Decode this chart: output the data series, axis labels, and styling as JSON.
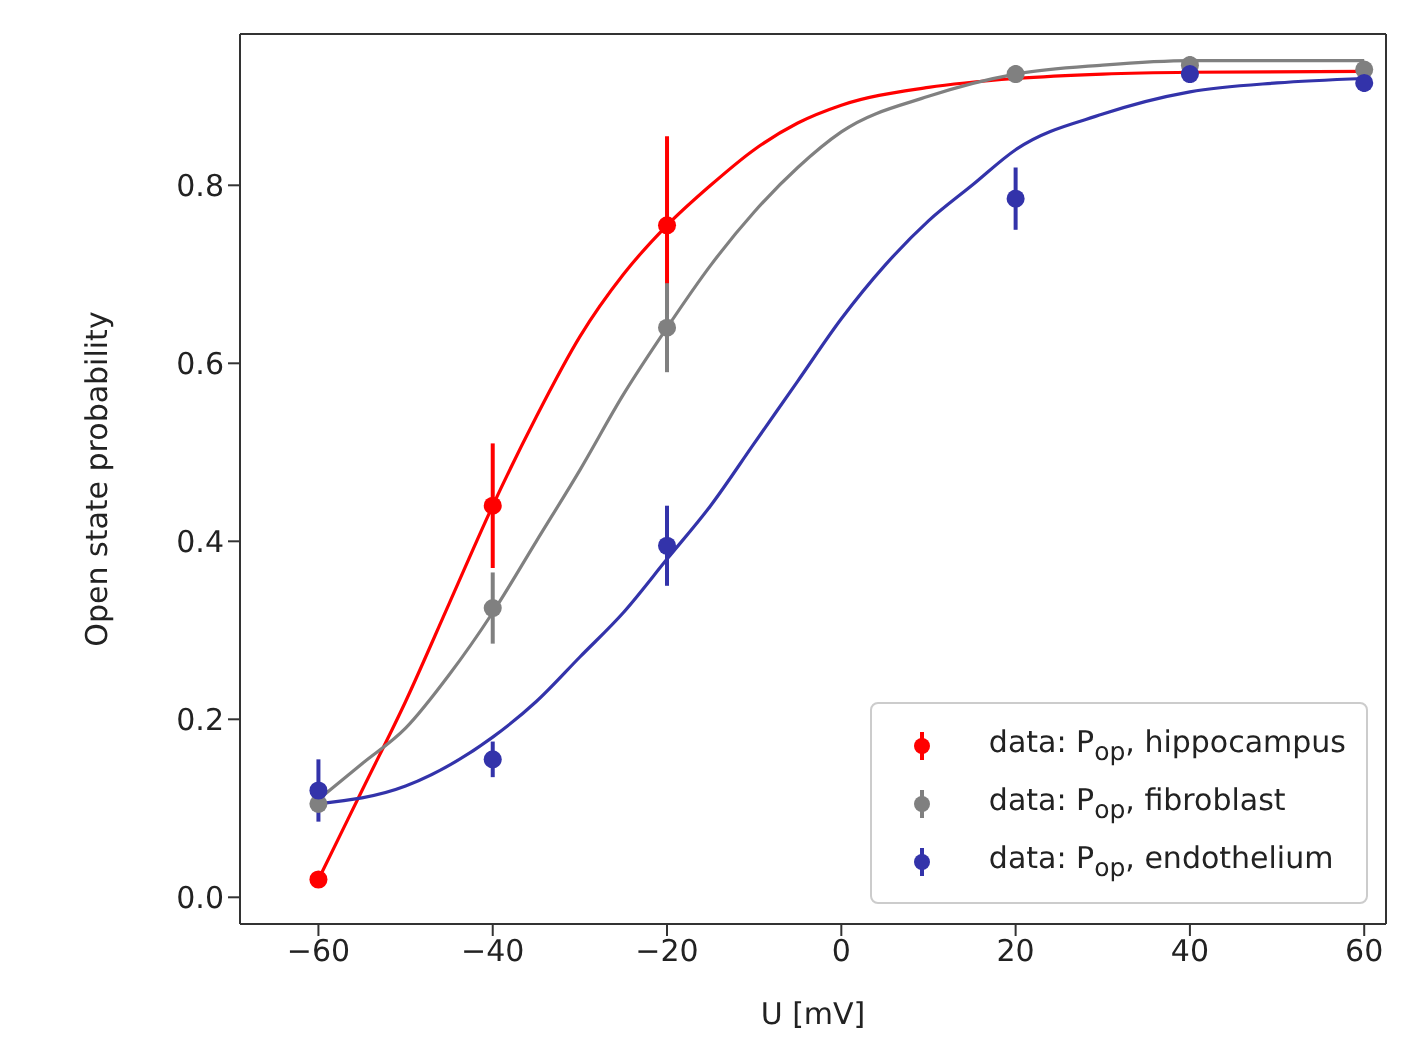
{
  "chart_data": {
    "type": "scatter",
    "xlabel": "U [mV]",
    "ylabel": "Open state probability",
    "xlim": [
      -69,
      62.5
    ],
    "ylim": [
      -0.03,
      0.97
    ],
    "xticks": [
      -60,
      -40,
      -20,
      0,
      20,
      40,
      60
    ],
    "yticks": [
      {
        "value": 0,
        "label": "0.0"
      },
      0.2,
      0.4,
      0.6,
      0.8
    ],
    "grid": false,
    "legend": "bottom right",
    "marker": "circle",
    "line_style": "solid",
    "series": [
      {
        "name": "data: P$_{op}$, hippocampus",
        "color": "#ff0000",
        "x": [
          -60,
          -40,
          -20
        ],
        "values": [
          0.02,
          0.44,
          0.755
        ],
        "errors": [
          null,
          0.07,
          0.1
        ]
      },
      {
        "name": "data: P$_{op}$, fibroblast",
        "color": "#808080",
        "x": [
          -60,
          -40,
          -20,
          20,
          40,
          60
        ],
        "values": [
          0.105,
          0.325,
          0.64,
          0.925,
          0.935,
          0.93
        ],
        "errors": [
          null,
          0.04,
          0.05,
          0.01,
          0.01,
          null
        ]
      },
      {
        "name": "data: P$_{op}$, endothelium",
        "color": "#3333aa",
        "x": [
          -60,
          -40,
          -20,
          20,
          40,
          60
        ],
        "values": [
          0.12,
          0.155,
          0.395,
          0.785,
          0.925,
          0.915
        ],
        "errors": [
          0.035,
          0.02,
          0.045,
          0.035,
          0.01,
          0.01
        ]
      },
      {
        "type": "line",
        "marker": "none",
        "color": "#ff0000",
        "x": [
          -60,
          -55,
          -50,
          -45,
          -40,
          -35,
          -30,
          -25,
          -20,
          -15,
          -10,
          -5,
          0,
          10,
          20,
          30,
          40,
          60
        ],
        "values": [
          0.02,
          0.12,
          0.22,
          0.33,
          0.44,
          0.54,
          0.63,
          0.7,
          0.755,
          0.8,
          0.84,
          0.87,
          0.89,
          0.91,
          0.92,
          0.925,
          0.927,
          0.928
        ]
      },
      {
        "type": "line",
        "marker": "none",
        "color": "#808080",
        "x": [
          -60,
          -55,
          -50,
          -45,
          -40,
          -35,
          -30,
          -25,
          -20,
          -15,
          -10,
          -5,
          0,
          10,
          20,
          30,
          40,
          60
        ],
        "values": [
          0.11,
          0.15,
          0.19,
          0.25,
          0.32,
          0.4,
          0.48,
          0.565,
          0.64,
          0.71,
          0.77,
          0.82,
          0.86,
          0.9,
          0.925,
          0.935,
          0.94,
          0.94
        ]
      },
      {
        "type": "line",
        "marker": "none",
        "color": "#3333aa",
        "x": [
          -60,
          -50,
          -40,
          -35,
          -30,
          -25,
          -20,
          -15,
          -10,
          -5,
          0,
          5,
          10,
          15,
          20,
          30,
          40,
          50,
          60
        ],
        "values": [
          0.105,
          0.125,
          0.18,
          0.22,
          0.27,
          0.32,
          0.38,
          0.44,
          0.51,
          0.58,
          0.65,
          0.71,
          0.76,
          0.8,
          0.84,
          0.88,
          0.905,
          0.915,
          0.92
        ]
      }
    ]
  }
}
